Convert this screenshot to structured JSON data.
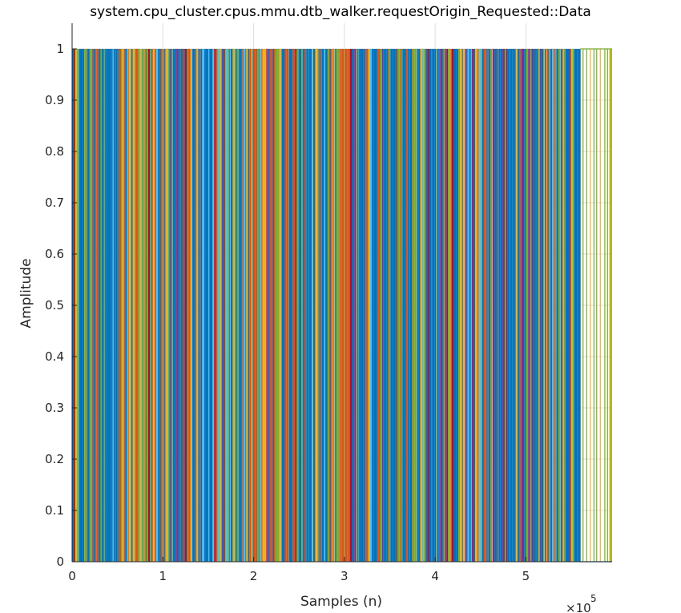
{
  "chart_data": {
    "type": "line",
    "title": "system.cpu_cluster.cpus.mmu.dtb_walker.requestOrigin_Requested::Data",
    "xlabel": "Samples (n)",
    "ylabel": "Amplitude",
    "x_exponent_label": "×10",
    "x_exponent_power": "5",
    "xlim": [
      0,
      595000
    ],
    "ylim": [
      0,
      1.05
    ],
    "x_ticks": [
      0,
      100000,
      200000,
      300000,
      400000,
      500000
    ],
    "x_tick_labels": [
      "0",
      "1",
      "2",
      "3",
      "4",
      "5"
    ],
    "y_ticks": [
      0,
      0.1,
      0.2,
      0.3,
      0.4,
      0.5,
      0.6,
      0.7,
      0.8,
      0.9,
      1
    ],
    "y_tick_labels": [
      "0",
      "0.1",
      "0.2",
      "0.3",
      "0.4",
      "0.5",
      "0.6",
      "0.7",
      "0.8",
      "0.9",
      "1"
    ],
    "grid": true,
    "signal": "binary pulse train switching between 0 and 1 across all samples; dense pulses up to ~5.6e5, sparse pulses between ~5.6e5 and ~5.95e5",
    "dense_until": 560000,
    "sparse_pulses_x": [
      563000,
      567000,
      571000,
      575000,
      578000,
      582000,
      587000,
      590000,
      593000
    ],
    "series_colors": [
      "#0072BD",
      "#D95319",
      "#EDB120",
      "#7E2F8E",
      "#77AC30",
      "#4DBEEE",
      "#A2142F"
    ]
  }
}
